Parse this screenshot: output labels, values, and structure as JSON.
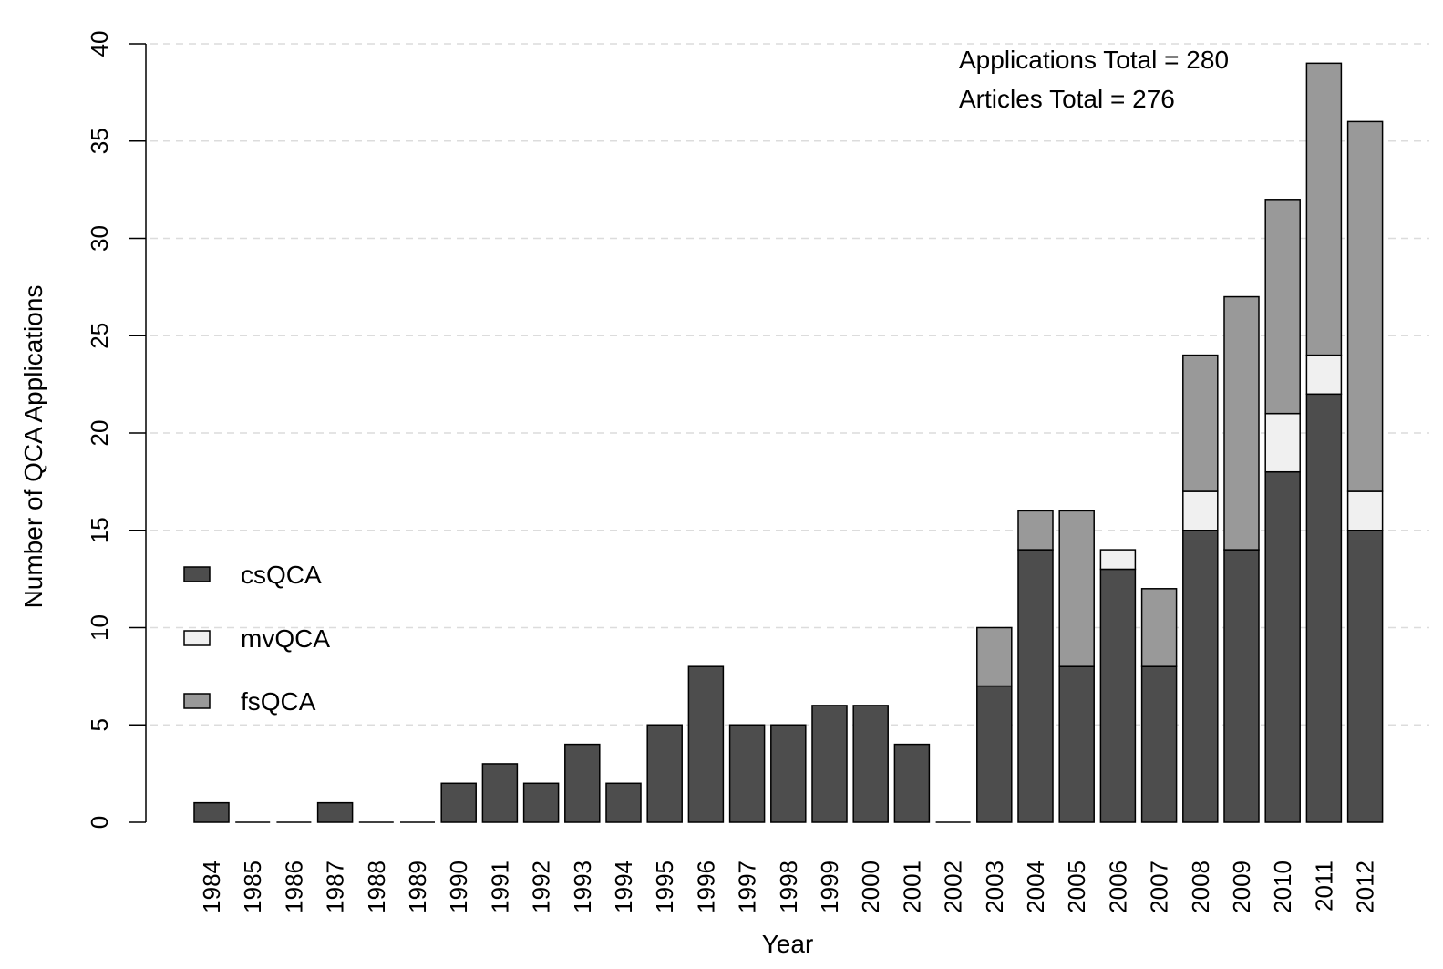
{
  "chart_data": {
    "type": "bar",
    "stacked": true,
    "categories": [
      "1984",
      "1985",
      "1986",
      "1987",
      "1988",
      "1989",
      "1990",
      "1991",
      "1992",
      "1993",
      "1994",
      "1995",
      "1996",
      "1997",
      "1998",
      "1999",
      "2000",
      "2001",
      "2002",
      "2003",
      "2004",
      "2005",
      "2006",
      "2007",
      "2008",
      "2009",
      "2010",
      "2011",
      "2012"
    ],
    "series": [
      {
        "name": "csQCA",
        "color": "#4d4d4d",
        "values": [
          1,
          0,
          0,
          1,
          0,
          0,
          2,
          3,
          2,
          4,
          2,
          5,
          8,
          5,
          5,
          6,
          6,
          4,
          0,
          7,
          14,
          8,
          13,
          8,
          15,
          14,
          18,
          22,
          15
        ]
      },
      {
        "name": "mvQCA",
        "color": "#f0f0f0",
        "values": [
          0,
          0,
          0,
          0,
          0,
          0,
          0,
          0,
          0,
          0,
          0,
          0,
          0,
          0,
          0,
          0,
          0,
          0,
          0,
          0,
          0,
          0,
          1,
          0,
          2,
          0,
          3,
          2,
          2
        ]
      },
      {
        "name": "fsQCA",
        "color": "#999999",
        "values": [
          0,
          0,
          0,
          0,
          0,
          0,
          0,
          0,
          0,
          0,
          0,
          0,
          0,
          0,
          0,
          0,
          0,
          0,
          0,
          3,
          2,
          8,
          0,
          4,
          7,
          13,
          11,
          15,
          19
        ]
      }
    ],
    "xlabel": "Year",
    "ylabel": "Number of QCA Applications",
    "ylim": [
      0,
      40
    ],
    "yticks": [
      0,
      5,
      10,
      15,
      20,
      25,
      30,
      35,
      40
    ],
    "grid": "horizontal-dashed",
    "legend_position": "left-middle",
    "annotations": [
      "Applications Total = 280",
      "Articles Total = 276"
    ]
  }
}
